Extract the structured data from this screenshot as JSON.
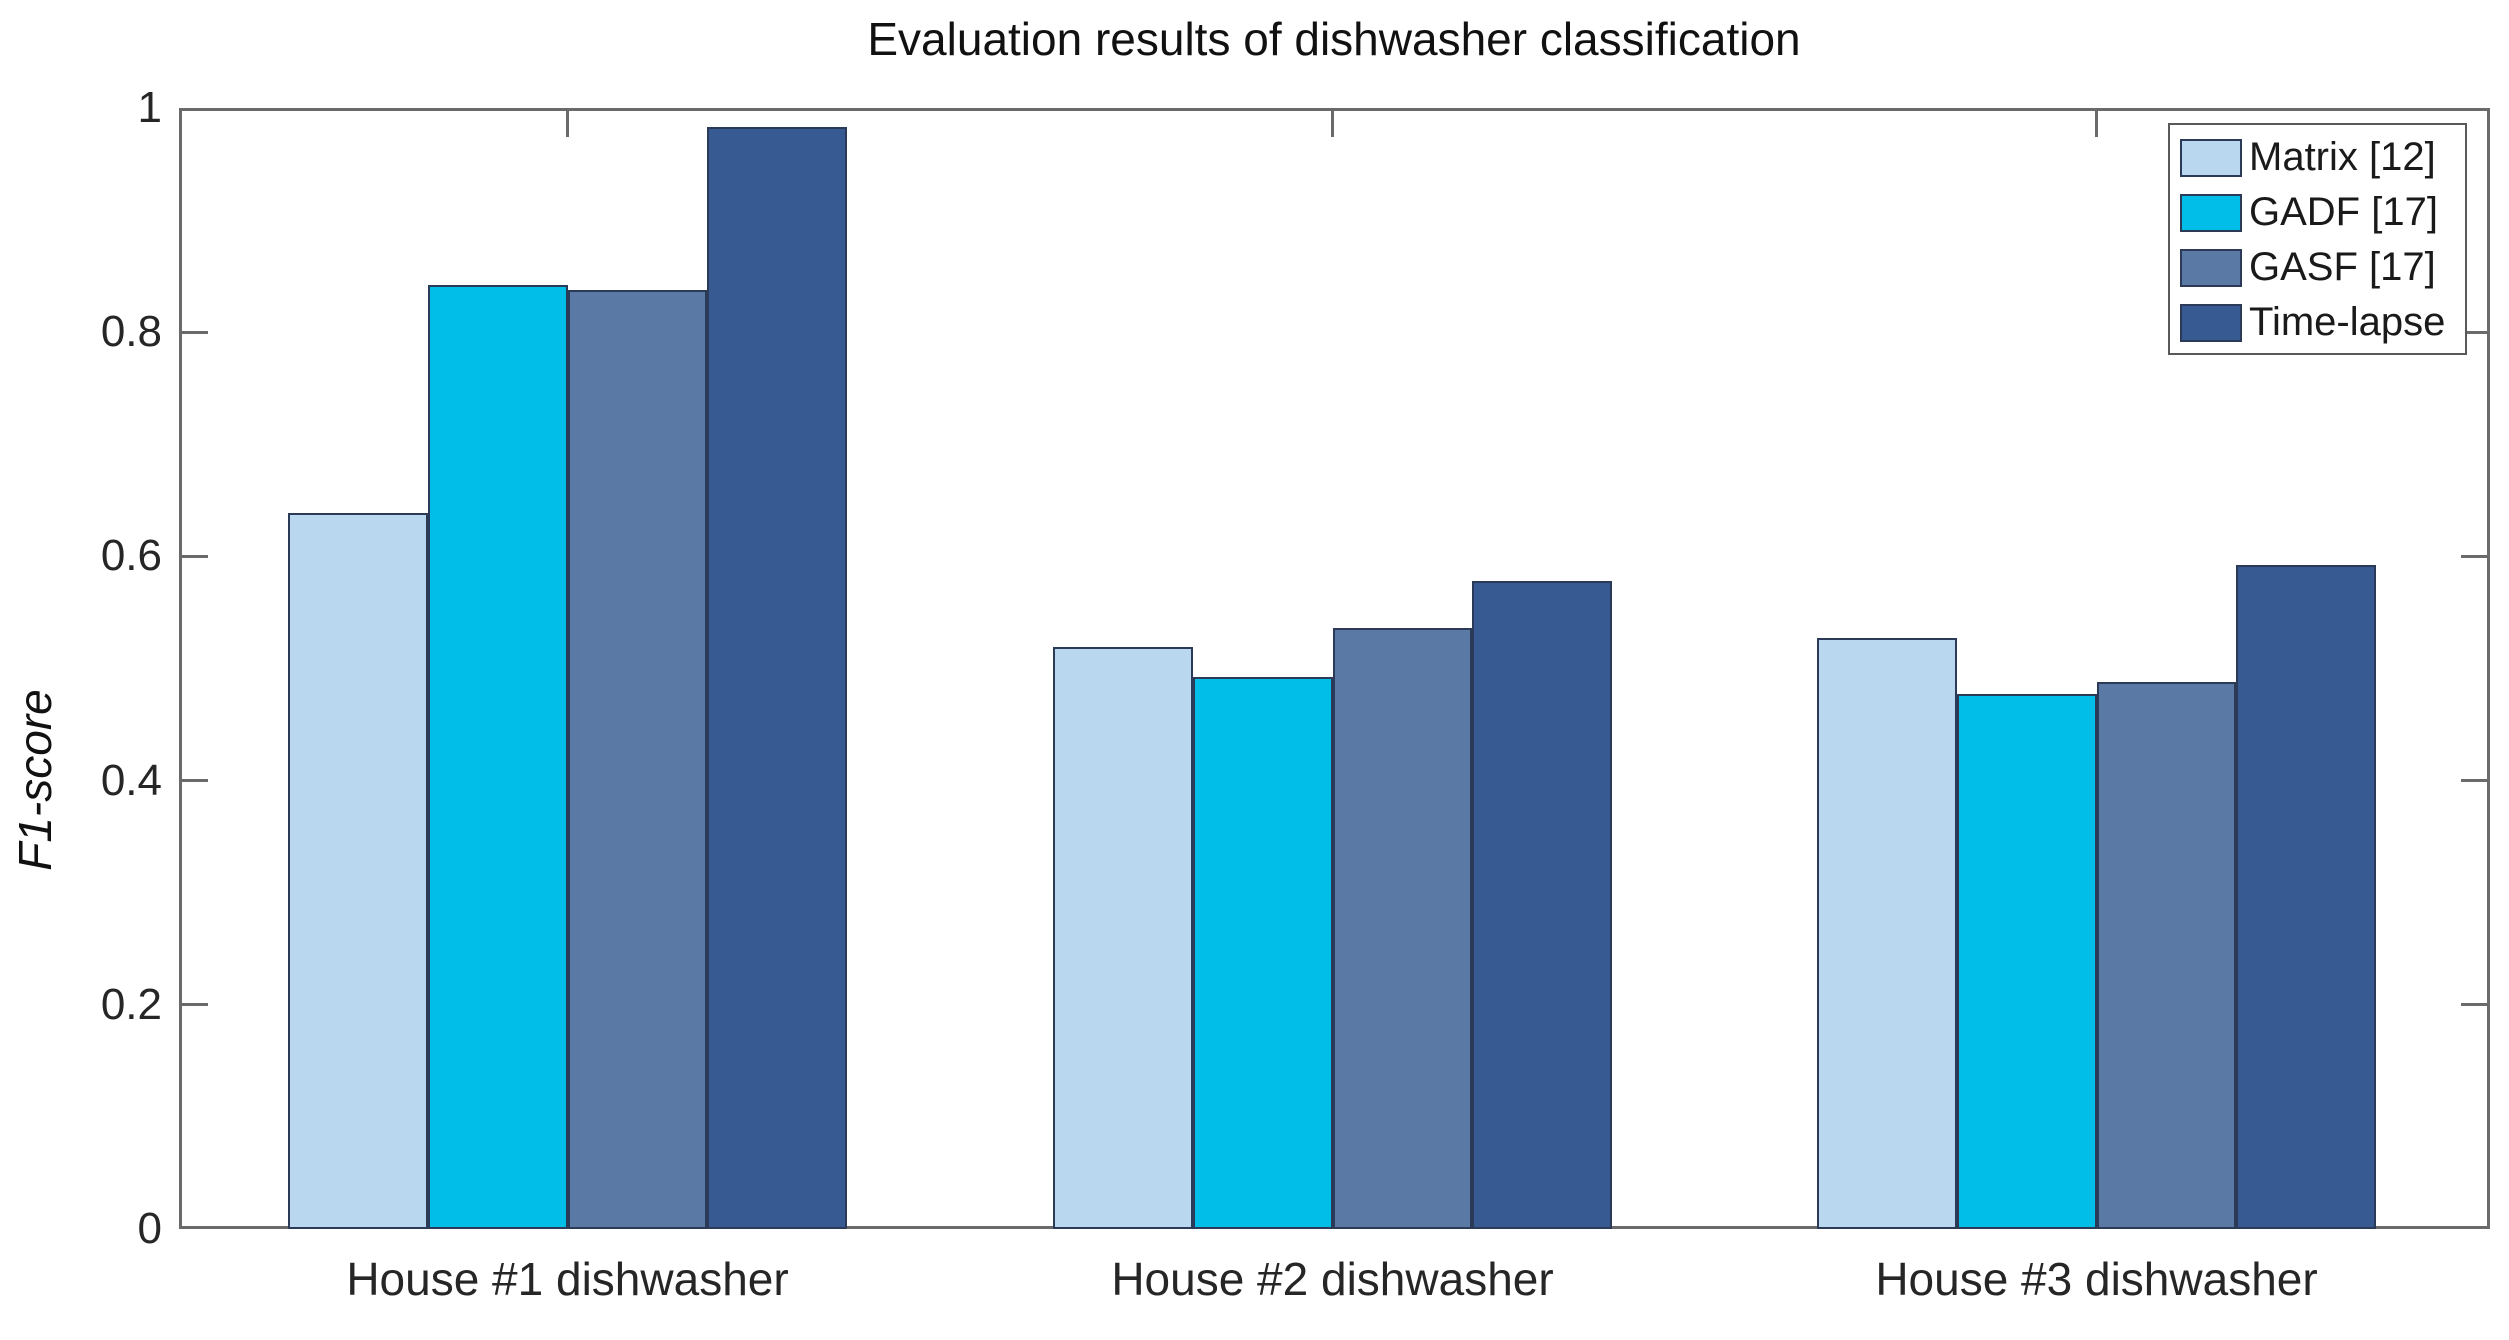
{
  "chart_data": {
    "type": "bar",
    "title": "Evaluation results of dishwasher classification",
    "xlabel": "",
    "ylabel": "F1-score",
    "categories": [
      "House #1 dishwasher",
      "House #2 dishwasher",
      "House #3 dishwasher"
    ],
    "series": [
      {
        "name": "Matrix [12]",
        "color": "#bad7f0",
        "values": [
          0.639,
          0.519,
          0.527
        ]
      },
      {
        "name": "GADF [17]",
        "color": "#00bee8",
        "values": [
          0.842,
          0.492,
          0.477
        ]
      },
      {
        "name": "GASF [17]",
        "color": "#5b79a5",
        "values": [
          0.838,
          0.536,
          0.488
        ]
      },
      {
        "name": "Time-lapse",
        "color": "#375a92",
        "values": [
          0.983,
          0.578,
          0.592
        ]
      }
    ],
    "ylim": [
      0,
      1
    ],
    "yticks": [
      0,
      0.2,
      0.4,
      0.6,
      0.8,
      1
    ],
    "ytick_labels": [
      "0",
      "0.2",
      "0.4",
      "0.6",
      "0.8",
      "1"
    ],
    "grid": false,
    "legend_position": "top-right",
    "bar_edge_color": "#2b3a57",
    "axis_color": "#6a6a6a"
  }
}
